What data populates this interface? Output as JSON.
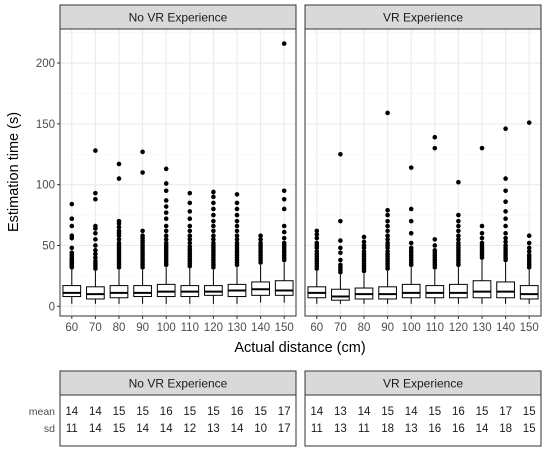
{
  "chart_data": {
    "type": "boxplot",
    "xlabel": "Actual distance (cm)",
    "ylabel": "Estimation time (s)",
    "ylim": [
      -8,
      228
    ],
    "yticks": [
      0,
      50,
      100,
      150,
      200
    ],
    "categories": [
      "60",
      "70",
      "80",
      "90",
      "100",
      "110",
      "120",
      "130",
      "140",
      "150"
    ],
    "grid": true,
    "panels": [
      {
        "title": "No VR Experience",
        "boxes": [
          {
            "low": 2,
            "q1": 8,
            "median": 11,
            "q3": 17,
            "high": 30,
            "outliers": [
              32,
              33,
              34,
              35,
              36,
              37,
              38,
              39,
              40,
              42,
              44,
              48,
              56,
              58,
              66,
              72,
              84
            ]
          },
          {
            "low": 2,
            "q1": 6,
            "median": 10,
            "q3": 16,
            "high": 29,
            "outliers": [
              31,
              33,
              35,
              37,
              40,
              43,
              46,
              50,
              55,
              60,
              64,
              66,
              88,
              93,
              128
            ]
          },
          {
            "low": 2,
            "q1": 7,
            "median": 11,
            "q3": 17,
            "high": 30,
            "outliers": [
              32,
              34,
              36,
              38,
              40,
              42,
              44,
              46,
              48,
              50,
              52,
              55,
              58,
              60,
              62,
              65,
              68,
              70,
              105,
              117
            ]
          },
          {
            "low": 2,
            "q1": 8,
            "median": 11,
            "q3": 17,
            "high": 30,
            "outliers": [
              32,
              34,
              36,
              38,
              40,
              42,
              44,
              46,
              48,
              50,
              52,
              54,
              56,
              58,
              62,
              110,
              127
            ]
          },
          {
            "low": 2,
            "q1": 8,
            "median": 12,
            "q3": 18,
            "high": 32,
            "outliers": [
              34,
              36,
              38,
              40,
              42,
              44,
              46,
              48,
              50,
              52,
              55,
              58,
              62,
              66,
              72,
              77,
              82,
              87,
              95,
              101,
              113
            ]
          },
          {
            "low": 2,
            "q1": 8,
            "median": 12,
            "q3": 17,
            "high": 31,
            "outliers": [
              33,
              35,
              37,
              39,
              41,
              43,
              45,
              47,
              49,
              52,
              55,
              58,
              62,
              66,
              72,
              78,
              85,
              93
            ]
          },
          {
            "low": 2,
            "q1": 9,
            "median": 12,
            "q3": 17,
            "high": 30,
            "outliers": [
              32,
              34,
              36,
              38,
              40,
              42,
              44,
              46,
              48,
              50,
              52,
              55,
              58,
              62,
              66,
              70,
              75,
              80,
              85,
              90,
              94
            ]
          },
          {
            "low": 2,
            "q1": 8,
            "median": 13,
            "q3": 18,
            "high": 32,
            "outliers": [
              34,
              36,
              38,
              40,
              42,
              44,
              46,
              48,
              50,
              52,
              55,
              58,
              62,
              66,
              70,
              75,
              80,
              85,
              92
            ]
          },
          {
            "low": 3,
            "q1": 9,
            "median": 14,
            "q3": 20,
            "high": 34,
            "outliers": [
              36,
              38,
              40,
              42,
              44,
              46,
              48,
              50,
              52,
              55,
              58
            ]
          },
          {
            "low": 3,
            "q1": 9,
            "median": 13,
            "q3": 21,
            "high": 36,
            "outliers": [
              38,
              40,
              42,
              44,
              46,
              48,
              50,
              52,
              56,
              61,
              66,
              80,
              88,
              95,
              216
            ]
          }
        ]
      },
      {
        "title": "VR Experience",
        "boxes": [
          {
            "low": 2,
            "q1": 7,
            "median": 11,
            "q3": 16,
            "high": 29,
            "outliers": [
              31,
              33,
              35,
              37,
              39,
              41,
              43,
              45,
              48,
              50,
              52,
              56,
              59,
              62
            ]
          },
          {
            "low": 2,
            "q1": 5,
            "median": 8,
            "q3": 14,
            "high": 26,
            "outliers": [
              28,
              30,
              32,
              34,
              38,
              44,
              48,
              54,
              70,
              125
            ]
          },
          {
            "low": 2,
            "q1": 6,
            "median": 10,
            "q3": 15,
            "high": 27,
            "outliers": [
              29,
              31,
              33,
              35,
              37,
              39,
              41,
              43,
              45,
              48,
              50,
              53,
              57
            ]
          },
          {
            "low": 2,
            "q1": 6,
            "median": 10,
            "q3": 16,
            "high": 29,
            "outliers": [
              31,
              33,
              35,
              37,
              39,
              41,
              43,
              45,
              48,
              50,
              52,
              55,
              58,
              62,
              66,
              70,
              75,
              79,
              159
            ]
          },
          {
            "low": 2,
            "q1": 7,
            "median": 11,
            "q3": 18,
            "high": 32,
            "outliers": [
              34,
              36,
              38,
              40,
              42,
              44,
              46,
              48,
              52,
              60,
              70,
              80,
              114
            ]
          },
          {
            "low": 2,
            "q1": 7,
            "median": 11,
            "q3": 17,
            "high": 30,
            "outliers": [
              32,
              34,
              36,
              38,
              40,
              42,
              44,
              46,
              50,
              55,
              130,
              139
            ]
          },
          {
            "low": 2,
            "q1": 7,
            "median": 11,
            "q3": 18,
            "high": 32,
            "outliers": [
              34,
              36,
              38,
              40,
              42,
              44,
              46,
              48,
              50,
              52,
              55,
              58,
              62,
              66,
              70,
              75,
              102
            ]
          },
          {
            "low": 2,
            "q1": 7,
            "median": 12,
            "q3": 21,
            "high": 38,
            "outliers": [
              40,
              42,
              44,
              46,
              48,
              50,
              52,
              56,
              60,
              66,
              130
            ]
          },
          {
            "low": 2,
            "q1": 7,
            "median": 12,
            "q3": 20,
            "high": 36,
            "outliers": [
              38,
              40,
              42,
              44,
              46,
              48,
              50,
              53,
              56,
              60,
              66,
              72,
              78,
              86,
              95,
              105,
              146
            ]
          },
          {
            "low": 2,
            "q1": 6,
            "median": 10,
            "q3": 17,
            "high": 30,
            "outliers": [
              32,
              34,
              36,
              38,
              40,
              42,
              45,
              48,
              52,
              58,
              151
            ]
          }
        ]
      }
    ]
  },
  "summary_table": {
    "row_labels": [
      "mean",
      "sd"
    ],
    "panels": [
      {
        "title": "No VR Experience",
        "mean": [
          "14",
          "14",
          "15",
          "15",
          "16",
          "15",
          "15",
          "16",
          "15",
          "17"
        ],
        "sd": [
          "11",
          "14",
          "15",
          "14",
          "14",
          "12",
          "13",
          "14",
          "10",
          "17"
        ]
      },
      {
        "title": "VR Experience",
        "mean": [
          "14",
          "13",
          "14",
          "15",
          "14",
          "15",
          "16",
          "15",
          "17",
          "15"
        ],
        "sd": [
          "11",
          "13",
          "11",
          "18",
          "13",
          "16",
          "16",
          "14",
          "18",
          "15"
        ]
      }
    ]
  },
  "colors": {
    "strip_fill": "#d9d9d9",
    "strip_border": "#333333",
    "panel_border": "#333333",
    "grid_major": "#ebebeb",
    "grid_minor": "#f5f5f5",
    "box_stroke": "#000000",
    "point": "#000000"
  }
}
